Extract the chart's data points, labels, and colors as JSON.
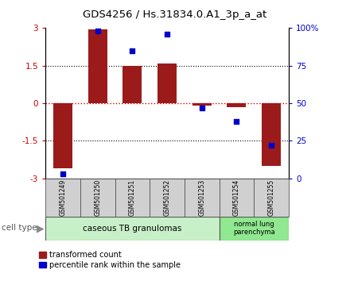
{
  "title": "GDS4256 / Hs.31834.0.A1_3p_a_at",
  "samples": [
    "GSM501249",
    "GSM501250",
    "GSM501251",
    "GSM501252",
    "GSM501253",
    "GSM501254",
    "GSM501255"
  ],
  "bar_values": [
    -2.6,
    2.95,
    1.5,
    1.6,
    -0.1,
    -0.15,
    -2.5
  ],
  "dot_values": [
    3,
    98,
    85,
    96,
    47,
    38,
    22
  ],
  "ylim_left": [
    -3,
    3
  ],
  "ylim_right": [
    0,
    100
  ],
  "yticks_left": [
    -3,
    -1.5,
    0,
    1.5,
    3
  ],
  "yticks_right": [
    0,
    25,
    50,
    75,
    100
  ],
  "ytick_labels_left": [
    "-3",
    "-1.5",
    "0",
    "1.5",
    "3"
  ],
  "ytick_labels_right": [
    "0",
    "25",
    "50",
    "75",
    "100%"
  ],
  "bar_color": "#9B1B1B",
  "dot_color": "#0000CC",
  "bar_width": 0.55,
  "group1_label": "caseous TB granulomas",
  "group2_label": "normal lung\nparenchyma",
  "group1_color": "#c8f0c8",
  "group2_color": "#90e890",
  "cell_type_label": "cell type",
  "legend_bar_label": "transformed count",
  "legend_dot_label": "percentile rank within the sample",
  "bg_color": "#ffffff",
  "tick_label_color_left": "#CC0000",
  "tick_label_color_right": "#0000CC",
  "zero_line_color": "#CC0000",
  "grid_line_color": "#000000",
  "sample_box_color": "#d0d0d0"
}
